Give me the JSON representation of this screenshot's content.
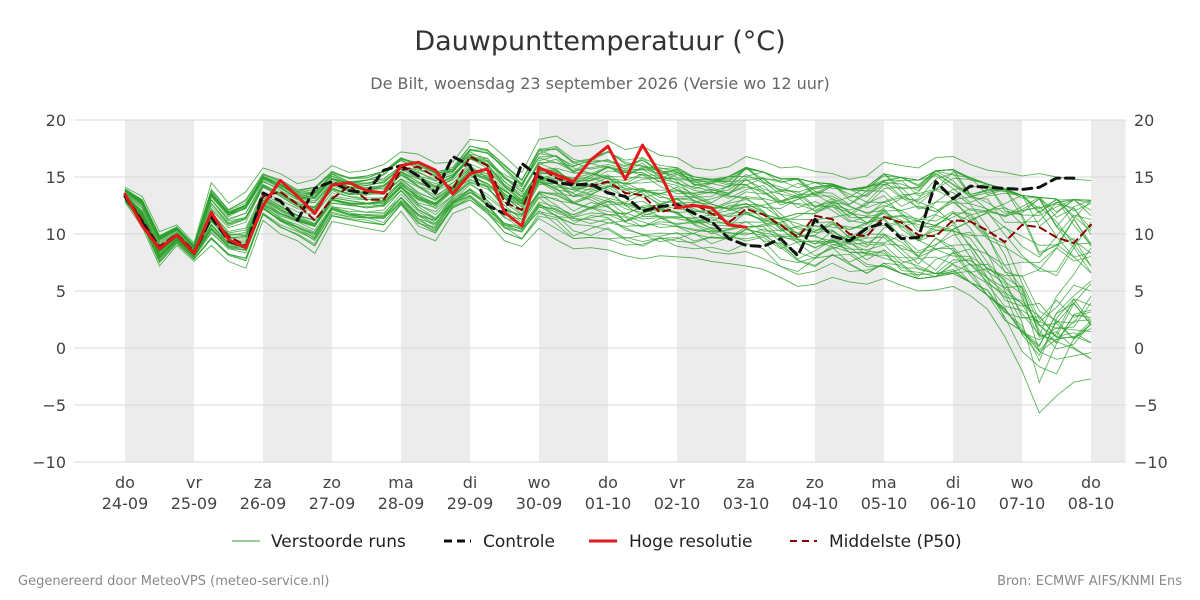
{
  "title": "Dauwpunttemperatuur (°C)",
  "subtitle": "De Bilt, woensdag 23 september 2026 (Versie wo 12 uur)",
  "footer_left": "Gegenereerd door MeteoVPS (meteo-service.nl)",
  "footer_right": "Bron: ECMWF AIFS/KNMI Ens",
  "colors": {
    "ensemble": "#2ca02c",
    "control": "#111111",
    "hres": "#e31a1c",
    "p50": "#8b0000",
    "weekend_band": "#ececec",
    "grid": "#d9d9d9"
  },
  "chart_data": {
    "type": "line",
    "title": "Dauwpunttemperatuur (°C)",
    "ylim": [
      -10,
      20
    ],
    "yticks": [
      "−10",
      "−5",
      "0",
      "5",
      "10",
      "15",
      "20"
    ],
    "ytick_values": [
      -10,
      -5,
      0,
      5,
      10,
      15,
      20
    ],
    "xlim": [
      -0.25,
      14.5
    ],
    "grid": "horizontal",
    "legend_position": "bottom",
    "x_unit": "days from 24-09 00 UTC",
    "shaded_day_bands": [
      [
        0,
        1
      ],
      [
        2,
        3
      ],
      [
        4,
        5
      ],
      [
        6,
        7
      ],
      [
        8,
        9
      ],
      [
        10,
        11
      ],
      [
        12,
        13
      ],
      [
        14,
        14.5
      ]
    ],
    "xticks": [
      {
        "day": "do",
        "date": "24-09"
      },
      {
        "day": "vr",
        "date": "25-09"
      },
      {
        "day": "za",
        "date": "26-09"
      },
      {
        "day": "zo",
        "date": "27-09"
      },
      {
        "day": "ma",
        "date": "28-09"
      },
      {
        "day": "di",
        "date": "29-09"
      },
      {
        "day": "wo",
        "date": "30-09"
      },
      {
        "day": "do",
        "date": "01-10"
      },
      {
        "day": "vr",
        "date": "02-10"
      },
      {
        "day": "za",
        "date": "03-10"
      },
      {
        "day": "zo",
        "date": "04-10"
      },
      {
        "day": "ma",
        "date": "05-10"
      },
      {
        "day": "di",
        "date": "06-10"
      },
      {
        "day": "wo",
        "date": "07-10"
      },
      {
        "day": "do",
        "date": "08-10"
      }
    ],
    "x_step_days": 0.25,
    "x_start": 0,
    "series": [
      {
        "name": "Controle",
        "style": "dashed",
        "color": "#111111",
        "values": [
          13.3,
          11.0,
          8.7,
          9.9,
          8.3,
          11.5,
          9.4,
          8.8,
          13.6,
          12.9,
          11.2,
          14.0,
          14.6,
          13.8,
          13.6,
          15.6,
          16.0,
          15.1,
          13.6,
          16.8,
          16.0,
          12.5,
          11.8,
          16.2,
          15.0,
          14.5,
          14.3,
          14.4,
          13.6,
          13.3,
          12.0,
          12.4,
          12.6,
          11.8,
          11.1,
          9.6,
          9.0,
          8.9,
          9.6,
          8.1,
          11.3,
          9.8,
          9.4,
          10.5,
          11.0,
          9.6,
          9.7,
          14.6,
          13.1,
          14.2,
          14.1,
          14.0,
          13.9,
          14.1,
          14.9,
          14.9
        ]
      },
      {
        "name": "Hoge resolutie",
        "style": "solid",
        "color": "#e31a1c",
        "values": [
          13.5,
          10.7,
          8.7,
          9.9,
          8.3,
          11.9,
          9.5,
          8.8,
          12.5,
          14.7,
          13.3,
          11.8,
          14.3,
          14.5,
          13.8,
          13.6,
          16.0,
          16.3,
          15.6,
          13.5,
          15.3,
          15.7,
          11.9,
          10.7,
          15.8,
          15.2,
          14.6,
          16.5,
          17.7,
          14.8,
          17.8,
          15.3,
          12.3,
          12.5,
          12.3,
          10.8,
          10.6
        ]
      },
      {
        "name": "Middelste (P50)",
        "style": "dashed",
        "color": "#8b0000",
        "values": [
          13.4,
          11.2,
          8.9,
          10.0,
          8.5,
          11.6,
          9.8,
          9.0,
          13.3,
          13.7,
          12.6,
          11.2,
          13.1,
          14.2,
          13.0,
          13.0,
          15.6,
          15.9,
          15.0,
          13.9,
          16.8,
          16.0,
          12.8,
          12.1,
          15.9,
          14.9,
          14.4,
          14.2,
          14.6,
          13.6,
          13.4,
          11.9,
          12.3,
          12.6,
          11.8,
          11.0,
          12.2,
          11.7,
          10.8,
          9.7,
          11.6,
          11.3,
          10.0,
          9.8,
          11.5,
          11.0,
          9.9,
          9.8,
          11.2,
          11.1,
          10.3,
          9.3,
          10.8,
          10.6,
          9.7,
          9.2,
          10.8
        ]
      },
      {
        "name": "Verstoorde runs",
        "style": "thin",
        "color": "#2ca02c",
        "member_count": 50
      }
    ],
    "ensemble_envelope": {
      "low": [
        12.8,
        10.6,
        7.2,
        9.0,
        7.6,
        9.0,
        7.6,
        7.0,
        11.2,
        10.0,
        9.4,
        8.3,
        11.1,
        10.8,
        10.5,
        10.2,
        12.0,
        10.0,
        9.4,
        11.8,
        12.4,
        11.1,
        9.4,
        8.9,
        10.5,
        9.5,
        8.7,
        8.8,
        8.6,
        8.1,
        7.8,
        8.1,
        8.0,
        7.9,
        7.6,
        7.4,
        7.2,
        6.9,
        6.2,
        5.4,
        5.6,
        6.2,
        5.8,
        5.6,
        6.1,
        5.5,
        5.0,
        5.1,
        5.4,
        4.6,
        3.4,
        1.0,
        -2.0,
        -5.7,
        -4.2,
        -3.0,
        -2.7
      ],
      "high": [
        14.1,
        13.3,
        10.2,
        10.8,
        9.2,
        14.5,
        12.7,
        13.7,
        15.8,
        15.3,
        14.4,
        14.8,
        16.0,
        15.4,
        15.6,
        16.1,
        17.2,
        17.0,
        16.2,
        16.3,
        18.3,
        18.1,
        16.8,
        15.4,
        18.3,
        18.6,
        17.7,
        17.8,
        18.2,
        17.4,
        17.7,
        16.9,
        16.7,
        15.8,
        15.6,
        15.9,
        16.8,
        16.4,
        15.8,
        15.9,
        15.5,
        15.3,
        14.8,
        15.1,
        16.3,
        16.0,
        15.8,
        16.7,
        16.8,
        16.1,
        15.6,
        15.4,
        15.1,
        15.3,
        15.0,
        14.8,
        14.7
      ]
    }
  },
  "legend": {
    "ensemble_label": "Verstoorde runs",
    "control_label": "Controle",
    "hres_label": "Hoge resolutie",
    "p50_label": "Middelste (P50)"
  }
}
